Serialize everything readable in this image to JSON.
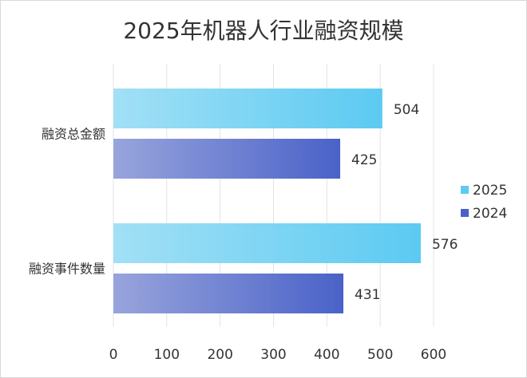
{
  "chart_data": {
    "type": "bar",
    "orientation": "horizontal",
    "title": "2025年机器人行业融资规模",
    "categories": [
      "融资总金额",
      "融资事件数量"
    ],
    "series": [
      {
        "name": "2025",
        "values": [
          504,
          576
        ],
        "color": "#5ccaf2",
        "color_light": "#a2e0f5"
      },
      {
        "name": "2024",
        "values": [
          425,
          431
        ],
        "color": "#4a62c8",
        "color_light": "#98a4dc"
      }
    ],
    "xlim": [
      0,
      600
    ],
    "xticks": [
      0,
      100,
      200,
      300,
      400,
      500,
      600
    ],
    "grid": true,
    "legend": "right",
    "data_labels": true
  }
}
